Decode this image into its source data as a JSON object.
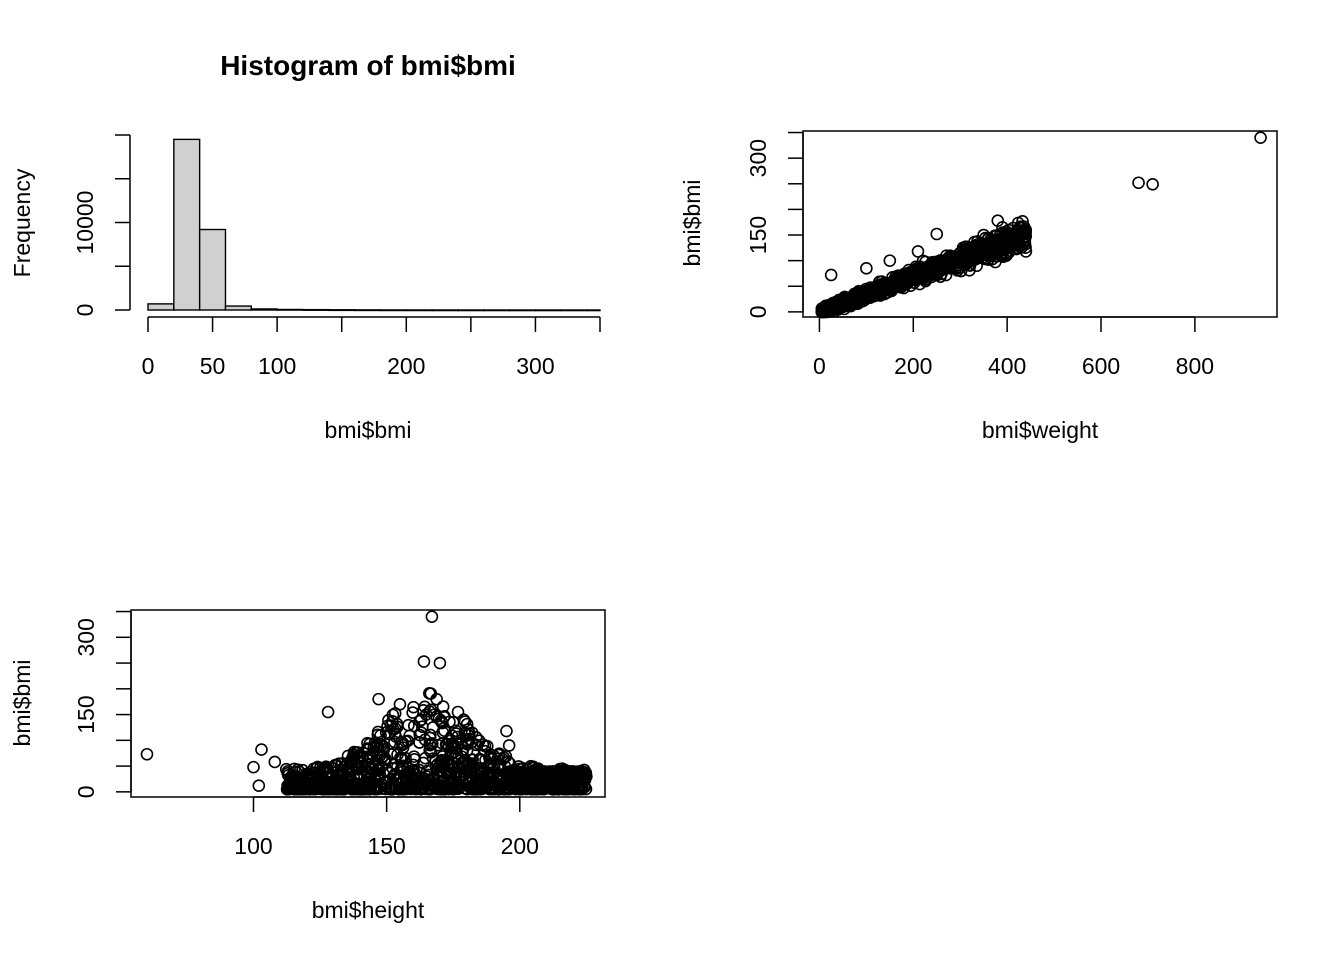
{
  "chart_data": [
    {
      "type": "bar",
      "title": "Histogram of bmi$bmi",
      "xlabel": "bmi$bmi",
      "ylabel": "Frequency",
      "xlim": [
        0,
        350
      ],
      "ylim": [
        0,
        20000
      ],
      "xticks": [
        0,
        50,
        100,
        200,
        300
      ],
      "yticks": [
        0,
        10000
      ],
      "bins": [
        {
          "from": 0,
          "to": 20,
          "count": 700
        },
        {
          "from": 20,
          "to": 40,
          "count": 19500
        },
        {
          "from": 40,
          "to": 60,
          "count": 9200
        },
        {
          "from": 60,
          "to": 80,
          "count": 450
        },
        {
          "from": 80,
          "to": 100,
          "count": 120
        },
        {
          "from": 100,
          "to": 120,
          "count": 60
        },
        {
          "from": 120,
          "to": 140,
          "count": 40
        },
        {
          "from": 140,
          "to": 160,
          "count": 25
        },
        {
          "from": 160,
          "to": 180,
          "count": 15
        },
        {
          "from": 180,
          "to": 200,
          "count": 8
        },
        {
          "from": 200,
          "to": 220,
          "count": 5
        },
        {
          "from": 220,
          "to": 240,
          "count": 3
        },
        {
          "from": 240,
          "to": 260,
          "count": 2
        },
        {
          "from": 260,
          "to": 280,
          "count": 2
        },
        {
          "from": 280,
          "to": 300,
          "count": 1
        },
        {
          "from": 300,
          "to": 320,
          "count": 1
        },
        {
          "from": 320,
          "to": 340,
          "count": 1
        },
        {
          "from": 340,
          "to": 350,
          "count": 1
        }
      ],
      "bar_fill": "#d0d0d0"
    },
    {
      "type": "scatter",
      "title": "",
      "xlabel": "bmi$weight",
      "ylabel": "bmi$bmi",
      "xlim": [
        -35,
        975
      ],
      "ylim": [
        -10,
        353
      ],
      "xticks": [
        0,
        200,
        400,
        600,
        800
      ],
      "yticks": [
        0,
        150,
        300
      ],
      "dense_band": {
        "x_from": 5,
        "x_to": 440,
        "slope": 0.34,
        "spread": 18
      },
      "points": [
        [
          25,
          72
        ],
        [
          100,
          85
        ],
        [
          150,
          100
        ],
        [
          210,
          118
        ],
        [
          250,
          152
        ],
        [
          270,
          98
        ],
        [
          300,
          110
        ],
        [
          350,
          150
        ],
        [
          380,
          178
        ],
        [
          390,
          165
        ],
        [
          420,
          150
        ],
        [
          440,
          118
        ],
        [
          335,
          90
        ],
        [
          360,
          102
        ],
        [
          680,
          252
        ],
        [
          710,
          249
        ],
        [
          940,
          340
        ]
      ]
    },
    {
      "type": "scatter",
      "title": "",
      "xlabel": "bmi$height",
      "ylabel": "bmi$bmi",
      "xlim": [
        54,
        232
      ],
      "ylim": [
        -10,
        353
      ],
      "xticks": [
        100,
        150,
        200
      ],
      "yticks": [
        0,
        150,
        300
      ],
      "dense_cloud": {
        "x_from": 100,
        "x_to": 225,
        "center": 165,
        "peak": 150
      },
      "points": [
        [
          60,
          73
        ],
        [
          100,
          48
        ],
        [
          102,
          12
        ],
        [
          103,
          82
        ],
        [
          108,
          58
        ],
        [
          128,
          155
        ],
        [
          147,
          180
        ],
        [
          155,
          170
        ],
        [
          163,
          140
        ],
        [
          168,
          150
        ],
        [
          175,
          135
        ],
        [
          195,
          118
        ],
        [
          196,
          90
        ],
        [
          164,
          253
        ],
        [
          170,
          250
        ],
        [
          167,
          340
        ],
        [
          220,
          32
        ],
        [
          225,
          30
        ]
      ]
    }
  ]
}
